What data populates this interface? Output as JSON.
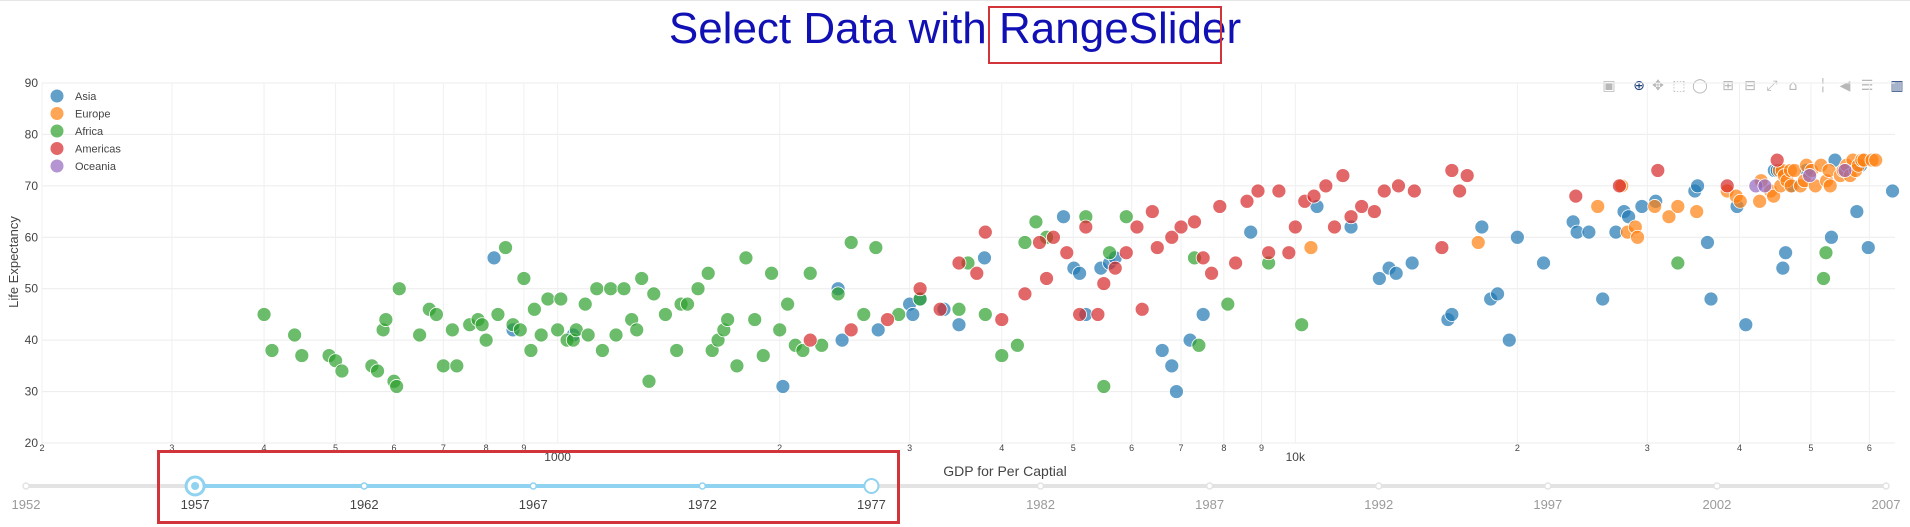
{
  "chart_data": {
    "type": "scatter",
    "title_prefix": "Select Data with ",
    "title_highlight": "RangeSlider",
    "xlabel": "GDP for Per Captial",
    "ylabel": "Life Expectancy",
    "x_scale": "log",
    "xlim": [
      200,
      65000
    ],
    "ylim": [
      20,
      90
    ],
    "y_ticks": [
      20,
      30,
      40,
      50,
      60,
      70,
      80,
      90
    ],
    "x_ticks": [
      {
        "v": 200,
        "label": "2"
      },
      {
        "v": 300,
        "label": "3"
      },
      {
        "v": 400,
        "label": "4"
      },
      {
        "v": 500,
        "label": "5"
      },
      {
        "v": 600,
        "label": "6"
      },
      {
        "v": 700,
        "label": "7"
      },
      {
        "v": 800,
        "label": "8"
      },
      {
        "v": 900,
        "label": "9"
      },
      {
        "v": 1000,
        "label": "1000"
      },
      {
        "v": 2000,
        "label": "2"
      },
      {
        "v": 3000,
        "label": "3"
      },
      {
        "v": 4000,
        "label": "4"
      },
      {
        "v": 5000,
        "label": "5"
      },
      {
        "v": 6000,
        "label": "6"
      },
      {
        "v": 7000,
        "label": "7"
      },
      {
        "v": 8000,
        "label": "8"
      },
      {
        "v": 9000,
        "label": "9"
      },
      {
        "v": 10000,
        "label": "10k"
      },
      {
        "v": 20000,
        "label": "2"
      },
      {
        "v": 30000,
        "label": "3"
      },
      {
        "v": 40000,
        "label": "4"
      },
      {
        "v": 50000,
        "label": "5"
      },
      {
        "v": 60000,
        "label": "6"
      }
    ],
    "grid": true,
    "legend_position": "top-left",
    "series": [
      {
        "name": "Asia",
        "color": "#1f77b4",
        "points": [
          [
            820,
            56
          ],
          [
            870,
            42
          ],
          [
            1050,
            41
          ],
          [
            2020,
            31
          ],
          [
            2400,
            50
          ],
          [
            2430,
            40
          ],
          [
            2720,
            42
          ],
          [
            3000,
            47
          ],
          [
            3030,
            45
          ],
          [
            3100,
            48
          ],
          [
            3340,
            46
          ],
          [
            3500,
            43
          ],
          [
            3790,
            56
          ],
          [
            4850,
            64
          ],
          [
            5010,
            54
          ],
          [
            5100,
            53
          ],
          [
            5450,
            54
          ],
          [
            5600,
            55
          ],
          [
            5700,
            56
          ],
          [
            5200,
            45
          ],
          [
            6600,
            38
          ],
          [
            6800,
            35
          ],
          [
            6900,
            30
          ],
          [
            7200,
            40
          ],
          [
            7500,
            45
          ],
          [
            8700,
            61
          ],
          [
            10700,
            66
          ],
          [
            11900,
            62
          ],
          [
            13000,
            52
          ],
          [
            13400,
            54
          ],
          [
            13700,
            53
          ],
          [
            14400,
            55
          ],
          [
            16100,
            44
          ],
          [
            16300,
            45
          ],
          [
            17900,
            62
          ],
          [
            18400,
            48
          ],
          [
            18800,
            49
          ],
          [
            19500,
            40
          ],
          [
            20000,
            60
          ],
          [
            21700,
            55
          ],
          [
            23800,
            63
          ],
          [
            24100,
            61
          ],
          [
            25000,
            61
          ],
          [
            26100,
            48
          ],
          [
            27200,
            61
          ],
          [
            27900,
            65
          ],
          [
            28300,
            64
          ],
          [
            29500,
            66
          ],
          [
            30800,
            67
          ],
          [
            34800,
            69
          ],
          [
            35100,
            70
          ],
          [
            36200,
            59
          ],
          [
            36600,
            48
          ],
          [
            39700,
            66
          ],
          [
            40800,
            43
          ],
          [
            44600,
            73
          ],
          [
            45000,
            73
          ],
          [
            45800,
            54
          ],
          [
            46200,
            57
          ],
          [
            47200,
            70
          ],
          [
            49300,
            73
          ],
          [
            53300,
            60
          ],
          [
            53900,
            75
          ],
          [
            57700,
            65
          ],
          [
            58400,
            74
          ],
          [
            59800,
            58
          ],
          [
            64500,
            69
          ]
        ]
      },
      {
        "name": "Europe",
        "color": "#ff7f0e",
        "points": [
          [
            10500,
            58
          ],
          [
            17700,
            59
          ],
          [
            25700,
            66
          ],
          [
            27700,
            70
          ],
          [
            28200,
            61
          ],
          [
            28900,
            62
          ],
          [
            29100,
            60
          ],
          [
            30700,
            66
          ],
          [
            32100,
            64
          ],
          [
            33000,
            66
          ],
          [
            35000,
            65
          ],
          [
            38500,
            69
          ],
          [
            39600,
            68
          ],
          [
            40100,
            67
          ],
          [
            42600,
            67
          ],
          [
            42800,
            71
          ],
          [
            44100,
            69
          ],
          [
            44500,
            68
          ],
          [
            45300,
            73
          ],
          [
            45500,
            70
          ],
          [
            45700,
            73
          ],
          [
            46000,
            72
          ],
          [
            46400,
            71
          ],
          [
            46900,
            73
          ],
          [
            47000,
            70
          ],
          [
            47500,
            73
          ],
          [
            48400,
            70
          ],
          [
            49000,
            71
          ],
          [
            49300,
            74
          ],
          [
            50100,
            73
          ],
          [
            50700,
            70
          ],
          [
            51600,
            74
          ],
          [
            52500,
            71
          ],
          [
            52900,
            73
          ],
          [
            53100,
            70
          ],
          [
            54800,
            72
          ],
          [
            55300,
            73
          ],
          [
            55900,
            74
          ],
          [
            56500,
            72
          ],
          [
            57000,
            75
          ],
          [
            57500,
            73
          ],
          [
            58000,
            74
          ],
          [
            58600,
            75
          ],
          [
            59000,
            75
          ],
          [
            60500,
            75
          ],
          [
            61200,
            75
          ]
        ]
      },
      {
        "name": "Africa",
        "color": "#2ca02c",
        "points": [
          [
            400,
            45
          ],
          [
            410,
            38
          ],
          [
            440,
            41
          ],
          [
            450,
            37
          ],
          [
            490,
            37
          ],
          [
            500,
            36
          ],
          [
            510,
            34
          ],
          [
            560,
            35
          ],
          [
            570,
            34
          ],
          [
            580,
            42
          ],
          [
            585,
            44
          ],
          [
            600,
            32
          ],
          [
            605,
            31
          ],
          [
            610,
            50
          ],
          [
            650,
            41
          ],
          [
            670,
            46
          ],
          [
            685,
            45
          ],
          [
            700,
            35
          ],
          [
            720,
            42
          ],
          [
            730,
            35
          ],
          [
            760,
            43
          ],
          [
            780,
            44
          ],
          [
            790,
            43
          ],
          [
            800,
            40
          ],
          [
            830,
            45
          ],
          [
            850,
            58
          ],
          [
            870,
            43
          ],
          [
            890,
            42
          ],
          [
            900,
            52
          ],
          [
            920,
            38
          ],
          [
            930,
            46
          ],
          [
            950,
            41
          ],
          [
            970,
            48
          ],
          [
            1000,
            42
          ],
          [
            1010,
            48
          ],
          [
            1030,
            40
          ],
          [
            1050,
            40
          ],
          [
            1060,
            42
          ],
          [
            1090,
            47
          ],
          [
            1100,
            41
          ],
          [
            1130,
            50
          ],
          [
            1150,
            38
          ],
          [
            1180,
            50
          ],
          [
            1200,
            41
          ],
          [
            1230,
            50
          ],
          [
            1260,
            44
          ],
          [
            1280,
            42
          ],
          [
            1300,
            52
          ],
          [
            1330,
            32
          ],
          [
            1350,
            49
          ],
          [
            1400,
            45
          ],
          [
            1450,
            38
          ],
          [
            1470,
            47
          ],
          [
            1500,
            47
          ],
          [
            1550,
            50
          ],
          [
            1600,
            53
          ],
          [
            1620,
            38
          ],
          [
            1650,
            40
          ],
          [
            1680,
            42
          ],
          [
            1700,
            44
          ],
          [
            1750,
            35
          ],
          [
            1800,
            56
          ],
          [
            1850,
            44
          ],
          [
            1900,
            37
          ],
          [
            1950,
            53
          ],
          [
            2000,
            42
          ],
          [
            2050,
            47
          ],
          [
            2100,
            39
          ],
          [
            2150,
            38
          ],
          [
            2200,
            53
          ],
          [
            2280,
            39
          ],
          [
            2400,
            49
          ],
          [
            2500,
            59
          ],
          [
            2600,
            45
          ],
          [
            2700,
            58
          ],
          [
            2900,
            45
          ],
          [
            3100,
            48
          ],
          [
            3500,
            46
          ],
          [
            3600,
            55
          ],
          [
            3800,
            45
          ],
          [
            4000,
            37
          ],
          [
            4200,
            39
          ],
          [
            4300,
            59
          ],
          [
            4450,
            63
          ],
          [
            4600,
            60
          ],
          [
            5200,
            64
          ],
          [
            5500,
            31
          ],
          [
            5600,
            57
          ],
          [
            5900,
            64
          ],
          [
            7300,
            56
          ],
          [
            7400,
            39
          ],
          [
            8100,
            47
          ],
          [
            9200,
            55
          ],
          [
            10200,
            43
          ],
          [
            33000,
            55
          ],
          [
            52000,
            52
          ],
          [
            52400,
            57
          ]
        ]
      },
      {
        "name": "Americas",
        "color": "#d62728",
        "points": [
          [
            2200,
            40
          ],
          [
            2500,
            42
          ],
          [
            2800,
            44
          ],
          [
            3100,
            50
          ],
          [
            3300,
            46
          ],
          [
            3500,
            55
          ],
          [
            3700,
            53
          ],
          [
            3800,
            61
          ],
          [
            4000,
            44
          ],
          [
            4300,
            49
          ],
          [
            4500,
            59
          ],
          [
            4600,
            52
          ],
          [
            4700,
            60
          ],
          [
            4900,
            57
          ],
          [
            5100,
            45
          ],
          [
            5200,
            62
          ],
          [
            5400,
            45
          ],
          [
            5500,
            51
          ],
          [
            5700,
            54
          ],
          [
            5900,
            57
          ],
          [
            6100,
            62
          ],
          [
            6200,
            46
          ],
          [
            6400,
            65
          ],
          [
            6500,
            58
          ],
          [
            6800,
            60
          ],
          [
            7000,
            62
          ],
          [
            7300,
            63
          ],
          [
            7500,
            56
          ],
          [
            7700,
            53
          ],
          [
            7900,
            66
          ],
          [
            8300,
            55
          ],
          [
            8600,
            67
          ],
          [
            8900,
            69
          ],
          [
            9200,
            57
          ],
          [
            9500,
            69
          ],
          [
            9800,
            57
          ],
          [
            10000,
            62
          ],
          [
            10300,
            67
          ],
          [
            10600,
            68
          ],
          [
            11000,
            70
          ],
          [
            11300,
            62
          ],
          [
            11600,
            72
          ],
          [
            11900,
            64
          ],
          [
            12300,
            66
          ],
          [
            12800,
            65
          ],
          [
            13200,
            69
          ],
          [
            13800,
            70
          ],
          [
            14500,
            69
          ],
          [
            15800,
            58
          ],
          [
            16300,
            73
          ],
          [
            16700,
            69
          ],
          [
            17100,
            72
          ],
          [
            24000,
            68
          ],
          [
            27500,
            70
          ],
          [
            31000,
            73
          ],
          [
            38500,
            70
          ],
          [
            45000,
            75
          ]
        ]
      },
      {
        "name": "Oceania",
        "color": "#9467bd",
        "points": [
          [
            42100,
            70
          ],
          [
            43300,
            70
          ],
          [
            49800,
            72
          ],
          [
            55600,
            73
          ]
        ]
      }
    ]
  },
  "slider": {
    "years": [
      "1952",
      "1957",
      "1962",
      "1967",
      "1972",
      "1977",
      "1982",
      "1987",
      "1992",
      "1997",
      "2002",
      "2007"
    ],
    "range": [
      "1957",
      "1977"
    ]
  },
  "modebar": {
    "icons": [
      "camera-icon",
      "zoom-icon",
      "pan-icon",
      "box-select-icon",
      "lasso-icon",
      "zoom-in-icon",
      "zoom-out-icon",
      "autoscale-icon",
      "home-icon",
      "spike-lines-icon",
      "hover-closest-icon",
      "hover-compare-icon",
      "plotly-logo-icon"
    ]
  }
}
